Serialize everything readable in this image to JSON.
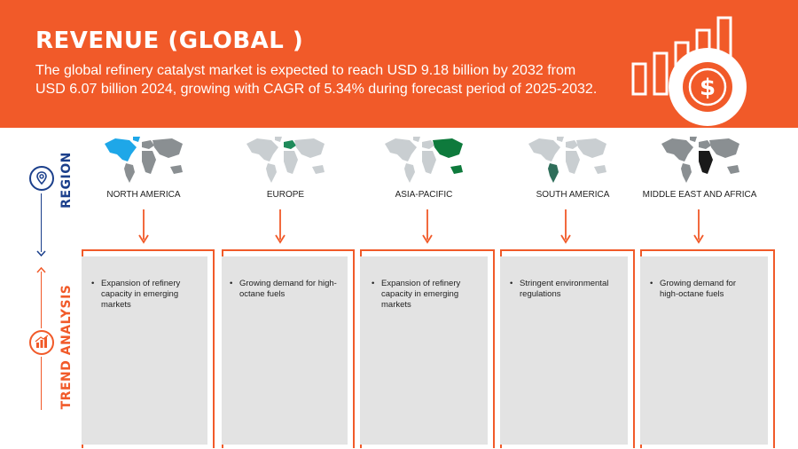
{
  "header": {
    "title": "REVENUE (GLOBAL )",
    "subtitle": "The global refinery catalyst market is expected to reach USD 9.18 billion by 2032 from USD 6.07 billion 2024, growing with CAGR of 5.34% during forecast period of 2025-2032.",
    "icon": "bar-chart-dollar-icon"
  },
  "side": {
    "region_label": "REGION",
    "trend_label": "TREND ANALYSIS",
    "region_icon": "location-pin-icon",
    "trend_icon": "trend-analysis-icon"
  },
  "colors": {
    "accent": "#f15a29",
    "navy": "#1b3f8b",
    "card_bg": "#e3e3e3",
    "map_gray": "#c9ced1",
    "map_dark": "#8a8f92"
  },
  "regions": [
    {
      "name": "NORTH AMERICA",
      "highlight_color": "#1ea7e8",
      "trend": "Expansion of refinery capacity in emerging markets"
    },
    {
      "name": "EUROPE",
      "highlight_color": "#1e8a5a",
      "trend": "Growing demand for high-octane fuels"
    },
    {
      "name": "ASIA-PACIFIC",
      "highlight_color": "#0e7a3c",
      "trend": "Expansion of refinery capacity in emerging markets"
    },
    {
      "name": "SOUTH AMERICA",
      "highlight_color": "#2f6e5a",
      "trend": "Stringent environmental regulations"
    },
    {
      "name": "MIDDLE EAST AND AFRICA",
      "highlight_color": "#1a1a1a",
      "trend": "Growing demand for high-octane fuels"
    }
  ]
}
